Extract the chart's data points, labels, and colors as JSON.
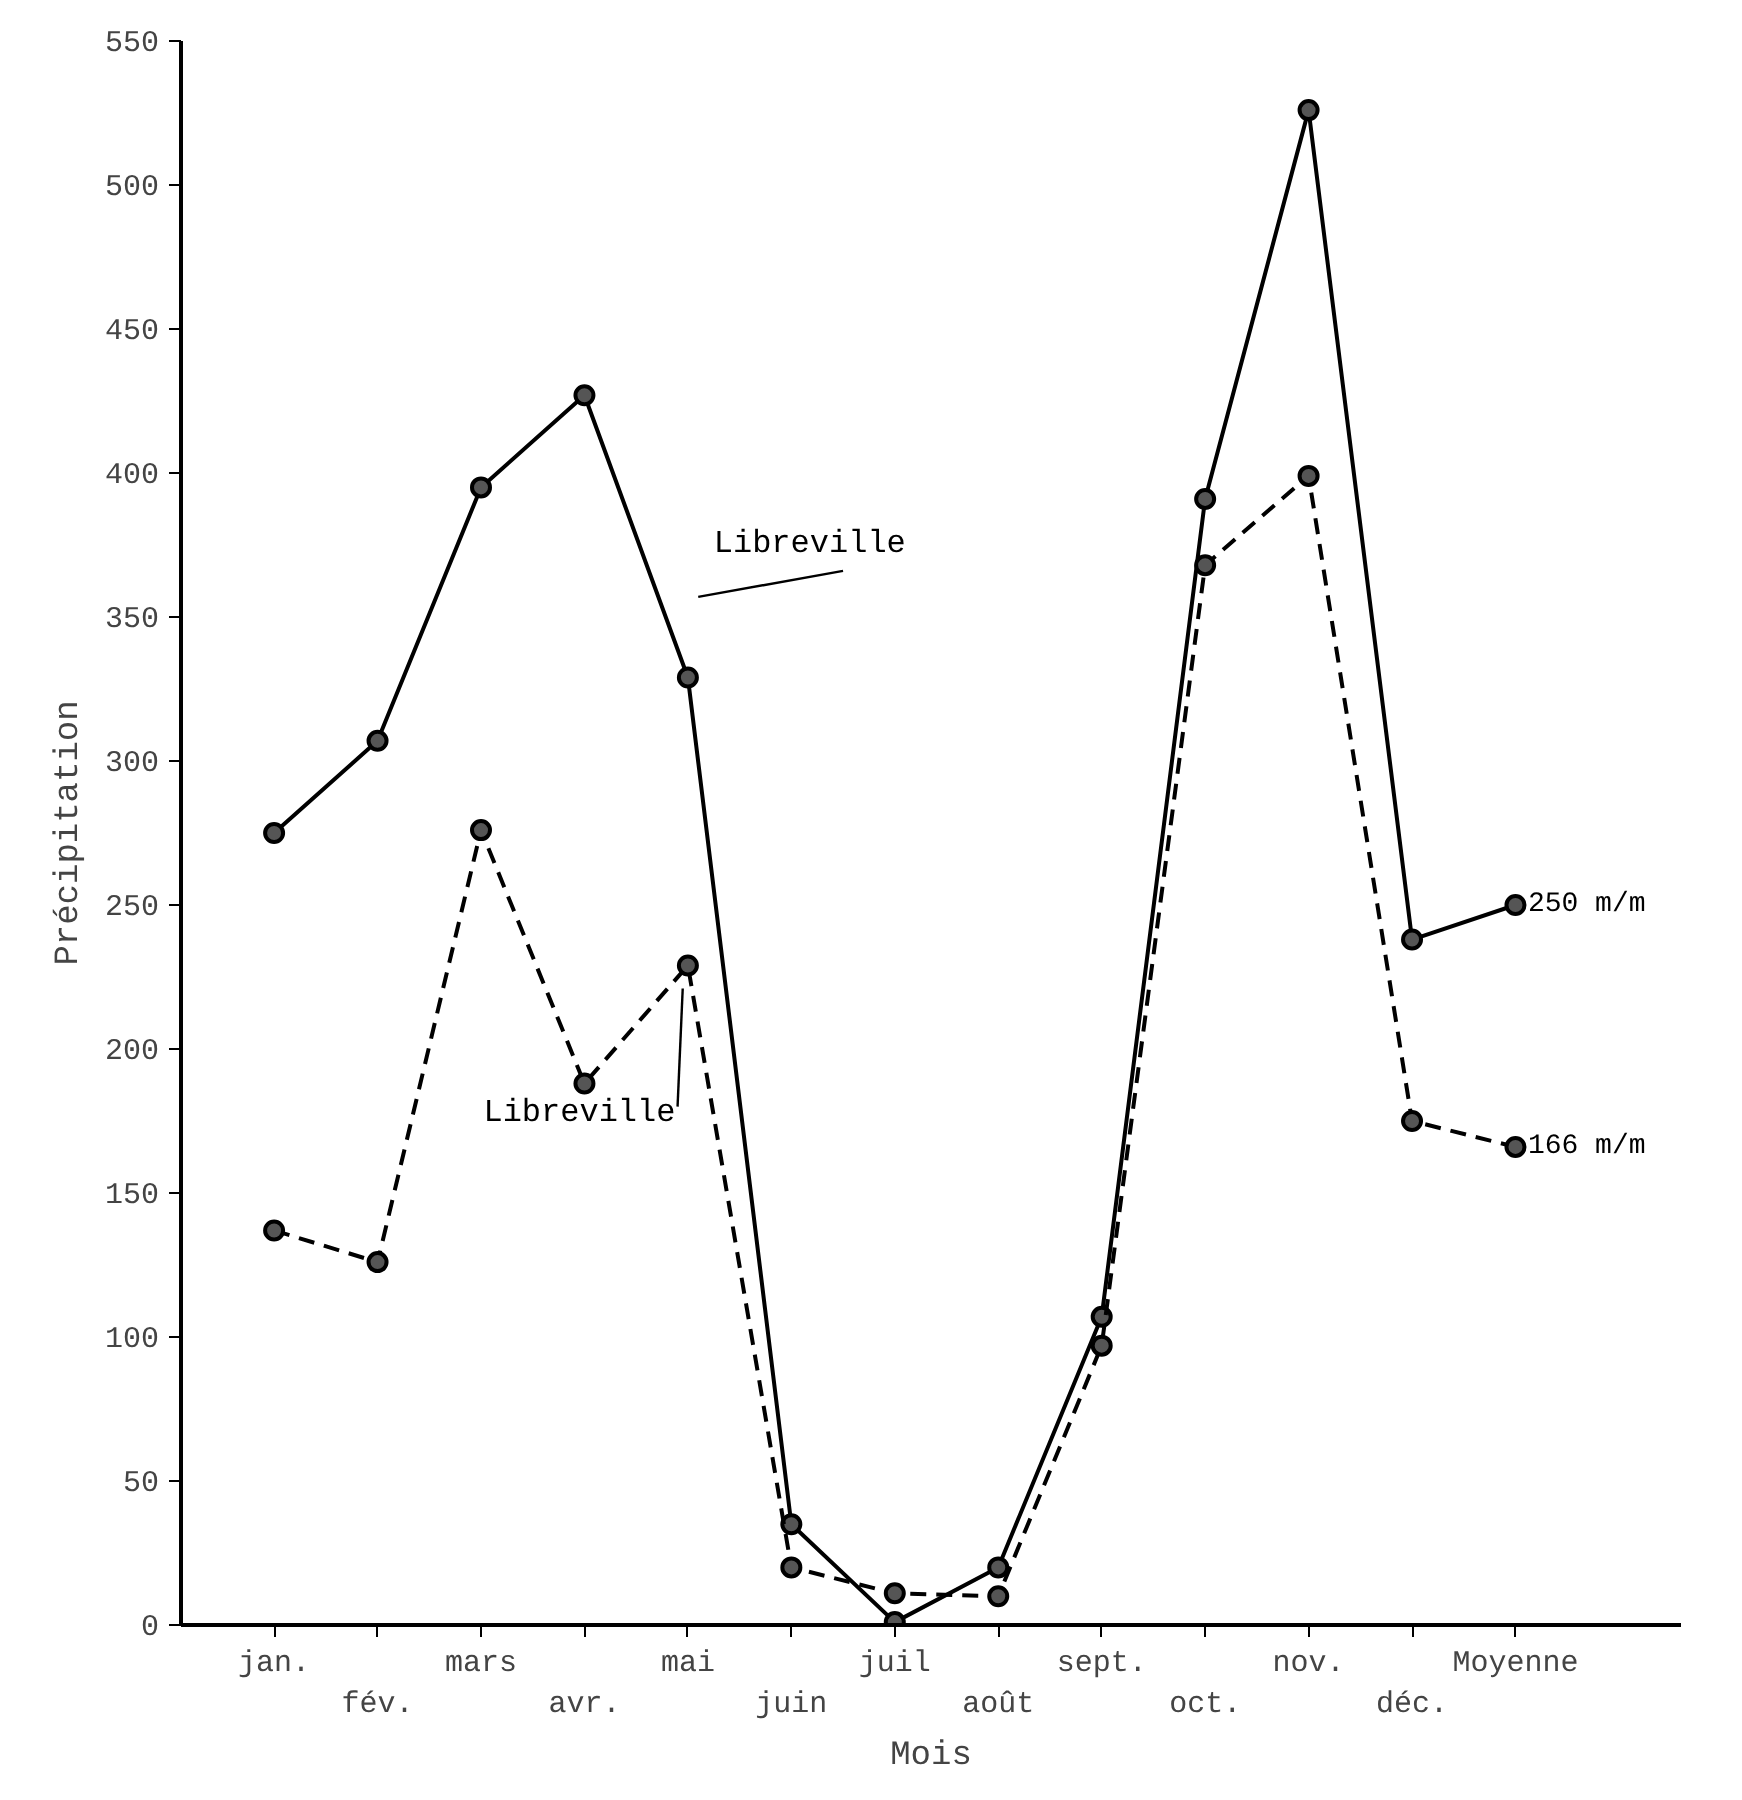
{
  "chart_data": {
    "type": "line",
    "xlabel": "Mois",
    "ylabel": "Précipitation",
    "categories": [
      "jan.",
      "fév.",
      "mars",
      "avr.",
      "mai",
      "juin",
      "juil",
      "août",
      "sept.",
      "oct.",
      "nov.",
      "déc.",
      "Moyenne"
    ],
    "ylim": [
      0,
      550
    ],
    "yticks": [
      0,
      50,
      100,
      150,
      200,
      250,
      300,
      350,
      400,
      450,
      500,
      550
    ],
    "grid": false,
    "marker": "circle",
    "series": [
      {
        "name": "Libreville",
        "color": "#000000",
        "line_style": "solid",
        "values": [
          275,
          307,
          395,
          427,
          329,
          35,
          1,
          20,
          107,
          391,
          526,
          238,
          250
        ],
        "value_labels": [
          null,
          null,
          null,
          null,
          null,
          null,
          null,
          null,
          null,
          null,
          null,
          null,
          "250 m/m"
        ]
      },
      {
        "name": "Libreville",
        "color": "#000000",
        "line_style": "dashed",
        "values": [
          137,
          126,
          276,
          188,
          229,
          20,
          11,
          10,
          97,
          368,
          399,
          175,
          166
        ],
        "value_labels": [
          null,
          null,
          null,
          null,
          null,
          null,
          null,
          null,
          null,
          null,
          null,
          null,
          "166 m/m"
        ]
      }
    ]
  }
}
